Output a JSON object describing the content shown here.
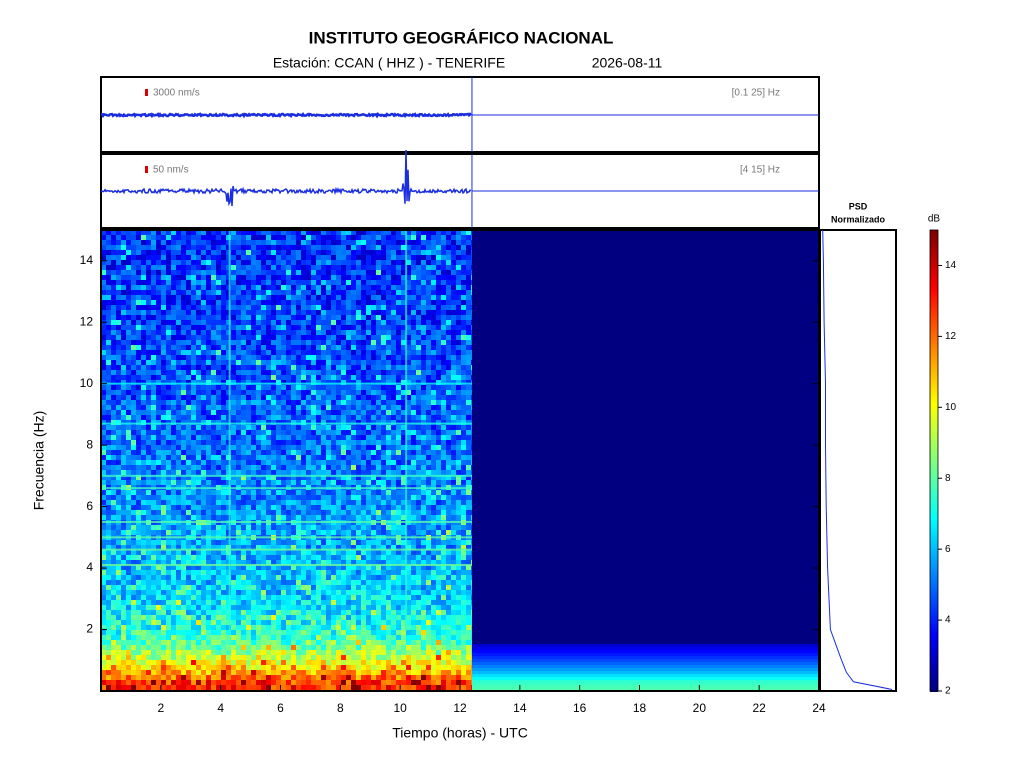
{
  "chart_data": {
    "type": "spectrogram",
    "title": "INSTITUTO GEOGRÁFICO NACIONAL",
    "station": "Estación:  CCAN ( HHZ ) - TENERIFE",
    "date": "2026-08-11",
    "traces": [
      {
        "scale": "3000 nm/s",
        "band": "[0.1 25] Hz"
      },
      {
        "scale": "50 nm/s",
        "band": "[4 15] Hz"
      }
    ],
    "xlabel": "Tiempo (horas) - UTC",
    "ylabel": "Frecuencia  (Hz)",
    "xlim": [
      0,
      24
    ],
    "xticks": [
      2,
      4,
      6,
      8,
      10,
      12,
      14,
      16,
      18,
      20,
      22,
      24
    ],
    "ylim": [
      0,
      15
    ],
    "yticks": [
      2,
      4,
      6,
      8,
      10,
      12,
      14
    ],
    "data_end": 12.4,
    "mean_db": {
      "freq": [
        0,
        0.3,
        0.6,
        1,
        1.5,
        2,
        3,
        4,
        6,
        8,
        10,
        12,
        15
      ],
      "values": [
        13,
        12.5,
        11,
        9.5,
        8,
        7,
        6.3,
        5.8,
        5.3,
        4.9,
        4.5,
        4.2,
        4
      ]
    },
    "spectral_lines": [
      10,
      8.7,
      6.6,
      5.0,
      4.1,
      4.6,
      5.5,
      7.0
    ],
    "events": [
      4.3,
      10.2
    ],
    "psd_title": "PSD",
    "psd_subtitle": "Normalizado",
    "psd": {
      "freq": [
        0.05,
        0.3,
        0.6,
        1,
        1.5,
        2,
        3,
        4,
        5,
        6,
        8,
        10,
        12,
        14,
        15
      ],
      "values": [
        1,
        0.45,
        0.35,
        0.28,
        0.2,
        0.12,
        0.1,
        0.08,
        0.07,
        0.06,
        0.05,
        0.05,
        0.03,
        0.02,
        0.01
      ]
    },
    "colorbar": {
      "label": "dB",
      "lim": [
        2,
        15
      ],
      "ticks": [
        2,
        4,
        6,
        8,
        10,
        12,
        14
      ]
    }
  }
}
